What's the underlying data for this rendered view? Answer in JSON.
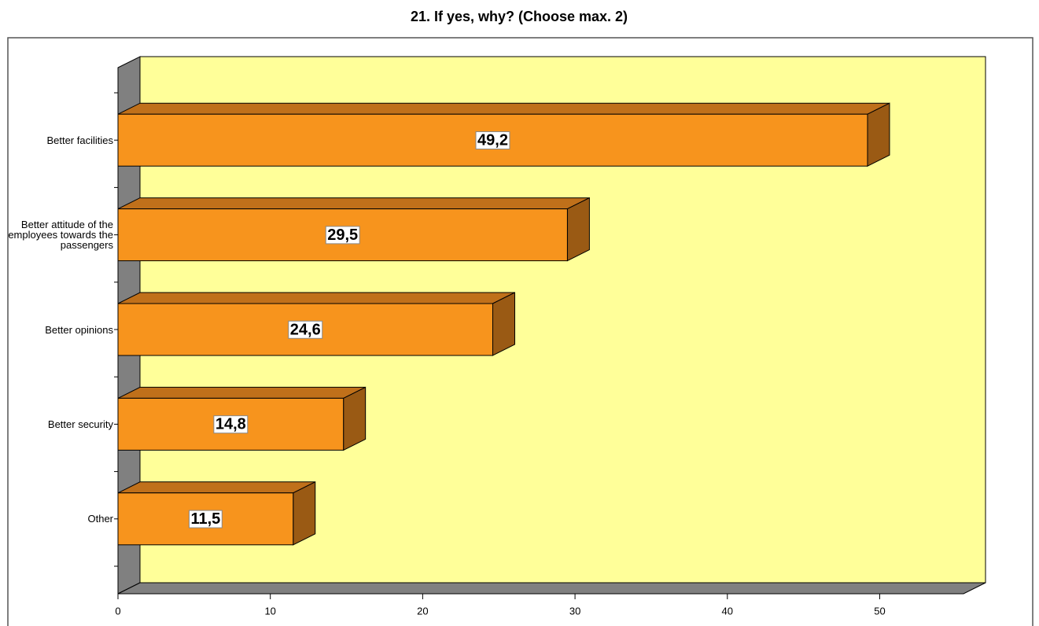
{
  "chart_data": {
    "type": "bar",
    "orientation": "horizontal",
    "title": "21. If yes, why? (Choose max. 2)",
    "categories": [
      "Better facilities",
      "Better attitude of the employees towards the passengers",
      "Better opinions",
      "Better security",
      "Other"
    ],
    "values": [
      49.2,
      29.5,
      24.6,
      14.8,
      11.5
    ],
    "value_labels": [
      "49,2",
      "29,5",
      "24,6",
      "14,8",
      "11,5"
    ],
    "color": "#f7941d",
    "xlim": [
      0,
      55.5
    ],
    "xticks": [
      0,
      10,
      20,
      30,
      40,
      50
    ],
    "grid": false
  }
}
